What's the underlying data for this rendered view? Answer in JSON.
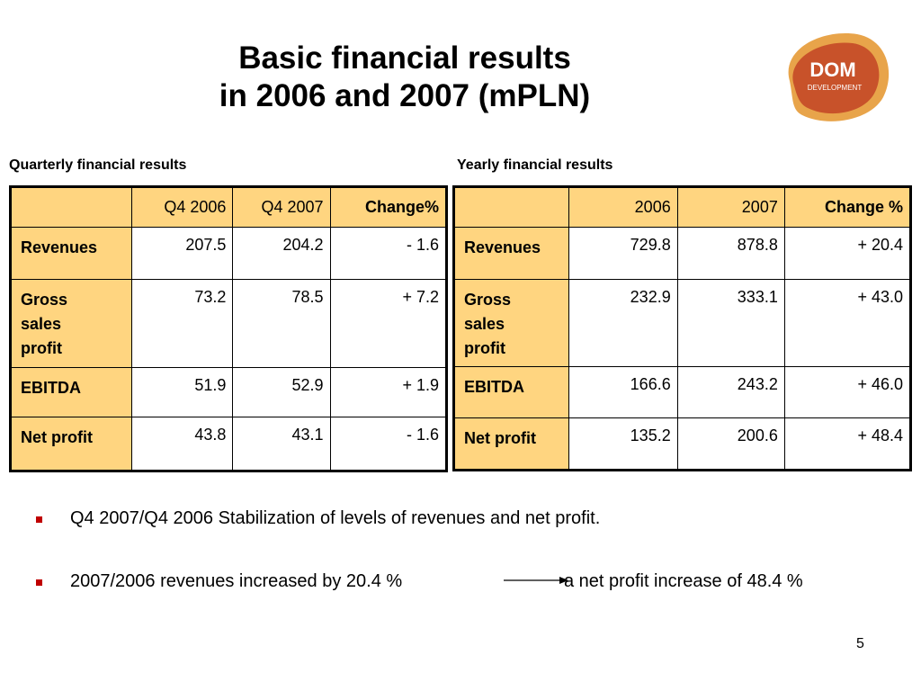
{
  "title": {
    "line1": "Basic financial results",
    "line2": "in 2006 and 2007 (mPLN)"
  },
  "logo": {
    "text_main": "DOM",
    "text_sub": "DEVELOPMENT",
    "color_outer": "#e8a44a",
    "color_inner": "#c8522a"
  },
  "quarterly": {
    "label": "Quarterly financial results",
    "headers": [
      "",
      "Q4 2006",
      "Q4 2007",
      "Change%"
    ],
    "rows": [
      {
        "label": "Revenues",
        "v1": "207.5",
        "v2": "204.2",
        "change": "- 1.6"
      },
      {
        "label": "Gross sales profit",
        "v1": "73.2",
        "v2": "78.5",
        "change": "+ 7.2"
      },
      {
        "label": "EBITDA",
        "v1": "51.9",
        "v2": "52.9",
        "change": "+ 1.9"
      },
      {
        "label": "Net profit",
        "v1": "43.8",
        "v2": "43.1",
        "change": "- 1.6"
      }
    ]
  },
  "yearly": {
    "label": "Yearly financial results",
    "headers": [
      "",
      "2006",
      "2007",
      "Change %"
    ],
    "rows": [
      {
        "label": "Revenues",
        "v1": "729.8",
        "v2": "878.8",
        "change": "+ 20.4"
      },
      {
        "label": "Gross sales profit",
        "v1": "232.9",
        "v2": "333.1",
        "change": "+ 43.0"
      },
      {
        "label": "EBITDA",
        "v1": "166.6",
        "v2": "243.2",
        "change": "+ 46.0"
      },
      {
        "label": "Net profit",
        "v1": "135.2",
        "v2": "200.6",
        "change": "+ 48.4"
      }
    ]
  },
  "bullets": {
    "b1": "Q4 2007/Q4 2006  Stabilization of levels of revenues and net profit.",
    "b2_left": "2007/2006 revenues increased by 20.4 %",
    "b2_right": "a net profit increase of 48.4 %"
  },
  "page_number": "5",
  "colors": {
    "header_fill": "#ffd580",
    "bullet": "#c00000"
  }
}
